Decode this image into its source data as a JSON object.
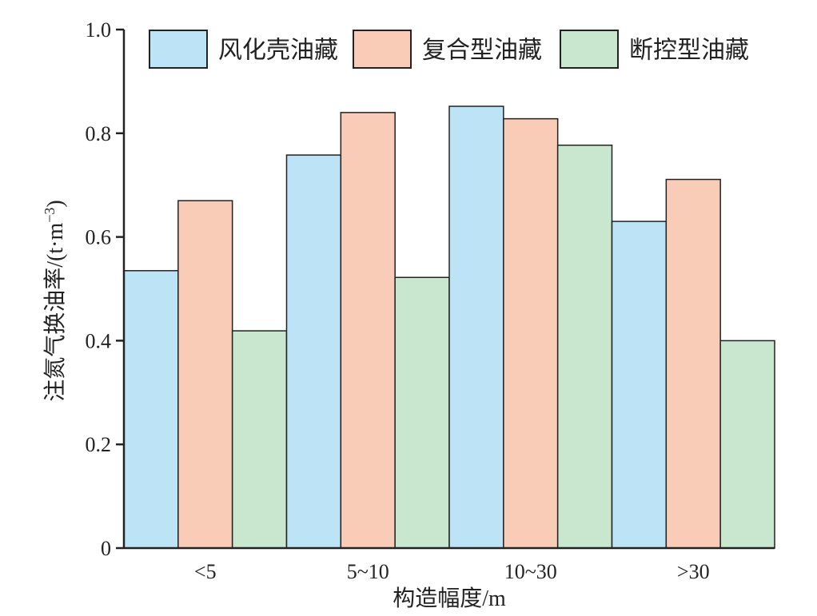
{
  "chart_data": {
    "type": "bar",
    "title": "",
    "xlabel": "构造幅度/m",
    "ylabel": {
      "main": "注氮气换油率/(t·m",
      "sup": "−3",
      "close": ")"
    },
    "categories": [
      "<5",
      "5~10",
      "10~30",
      ">30"
    ],
    "series": [
      {
        "name": "风化壳油藏",
        "color": "#bde3f6",
        "values": [
          0.535,
          0.758,
          0.852,
          0.63
        ]
      },
      {
        "name": "复合型油藏",
        "color": "#f8ccb6",
        "values": [
          0.67,
          0.84,
          0.828,
          0.711
        ]
      },
      {
        "name": "断控型油藏",
        "color": "#c9e6cf",
        "values": [
          0.419,
          0.522,
          0.777,
          0.4
        ]
      }
    ],
    "ylim": [
      0,
      1.0
    ],
    "yticks": [
      "0",
      "0.2",
      "0.4",
      "0.6",
      "0.8",
      "1.0"
    ],
    "grid": false,
    "legend_position": "top"
  }
}
